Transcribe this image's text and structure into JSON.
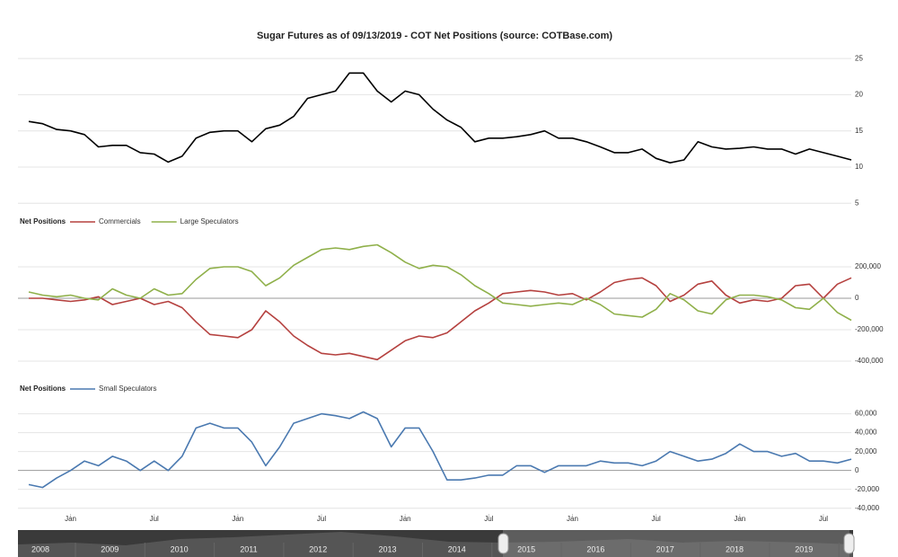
{
  "chart_data": [
    {
      "type": "line",
      "title": "Sugar Futures as of 09/13/2019 - COT Net Positions (source: COTBase.com)",
      "x": [
        "2014-10",
        "2014-11",
        "2014-12",
        "2015-01",
        "2015-02",
        "2015-03",
        "2015-04",
        "2015-05",
        "2015-06",
        "2015-07",
        "2015-08",
        "2015-09",
        "2015-10",
        "2015-11",
        "2015-12",
        "2016-01",
        "2016-02",
        "2016-03",
        "2016-04",
        "2016-05",
        "2016-06",
        "2016-07",
        "2016-08",
        "2016-09",
        "2016-10",
        "2016-11",
        "2016-12",
        "2017-01",
        "2017-02",
        "2017-03",
        "2017-04",
        "2017-05",
        "2017-06",
        "2017-07",
        "2017-08",
        "2017-09",
        "2017-10",
        "2017-11",
        "2017-12",
        "2018-01",
        "2018-02",
        "2018-03",
        "2018-04",
        "2018-05",
        "2018-06",
        "2018-07",
        "2018-08",
        "2018-09",
        "2018-10",
        "2018-11",
        "2018-12",
        "2019-01",
        "2019-02",
        "2019-03",
        "2019-04",
        "2019-05",
        "2019-06",
        "2019-07",
        "2019-08",
        "2019-09"
      ],
      "series": [
        {
          "color": "#000000",
          "values": [
            16.3,
            16.0,
            15.2,
            15.0,
            14.5,
            12.8,
            13.0,
            13.0,
            12.0,
            11.8,
            10.7,
            11.5,
            14.0,
            14.8,
            15.0,
            15.0,
            13.5,
            15.3,
            15.8,
            17.0,
            19.5,
            20.0,
            20.5,
            23.0,
            23.0,
            20.5,
            19.0,
            20.5,
            20.0,
            18.0,
            16.5,
            15.5,
            13.5,
            14.0,
            14.0,
            14.2,
            14.5,
            15.0,
            14.0,
            14.0,
            13.5,
            12.8,
            12.0,
            12.0,
            12.5,
            11.2,
            10.6,
            11.0,
            13.5,
            12.8,
            12.5,
            12.6,
            12.8,
            12.5,
            12.5,
            11.8,
            12.5,
            12.0,
            11.5,
            11.0
          ]
        }
      ],
      "ylim": [
        3.3,
        27.5
      ],
      "yticks": [
        5,
        10,
        15,
        20,
        25
      ]
    },
    {
      "type": "line",
      "legend_title": "Net Positions",
      "x": [
        "2014-10",
        "2014-11",
        "2014-12",
        "2015-01",
        "2015-02",
        "2015-03",
        "2015-04",
        "2015-05",
        "2015-06",
        "2015-07",
        "2015-08",
        "2015-09",
        "2015-10",
        "2015-11",
        "2015-12",
        "2016-01",
        "2016-02",
        "2016-03",
        "2016-04",
        "2016-05",
        "2016-06",
        "2016-07",
        "2016-08",
        "2016-09",
        "2016-10",
        "2016-11",
        "2016-12",
        "2017-01",
        "2017-02",
        "2017-03",
        "2017-04",
        "2017-05",
        "2017-06",
        "2017-07",
        "2017-08",
        "2017-09",
        "2017-10",
        "2017-11",
        "2017-12",
        "2018-01",
        "2018-02",
        "2018-03",
        "2018-04",
        "2018-05",
        "2018-06",
        "2018-07",
        "2018-08",
        "2018-09",
        "2018-10",
        "2018-11",
        "2018-12",
        "2019-01",
        "2019-02",
        "2019-03",
        "2019-04",
        "2019-05",
        "2019-06",
        "2019-07",
        "2019-08",
        "2019-09"
      ],
      "series": [
        {
          "name": "Commercials",
          "color": "#b5413f",
          "values": [
            0,
            0,
            -10000,
            -20000,
            -10000,
            10000,
            -40000,
            -20000,
            0,
            -40000,
            -20000,
            -60000,
            -150000,
            -230000,
            -240000,
            -250000,
            -200000,
            -80000,
            -150000,
            -240000,
            -300000,
            -350000,
            -360000,
            -350000,
            -370000,
            -390000,
            -330000,
            -270000,
            -240000,
            -250000,
            -220000,
            -150000,
            -80000,
            -30000,
            30000,
            40000,
            50000,
            40000,
            20000,
            30000,
            -10000,
            40000,
            100000,
            120000,
            130000,
            80000,
            -20000,
            20000,
            90000,
            110000,
            20000,
            -30000,
            -10000,
            -20000,
            0,
            80000,
            90000,
            0,
            90000,
            130000
          ]
        },
        {
          "name": "Large Speculators",
          "color": "#8fb04a",
          "values": [
            40000,
            20000,
            10000,
            20000,
            0,
            -10000,
            60000,
            20000,
            0,
            60000,
            20000,
            30000,
            120000,
            190000,
            200000,
            200000,
            170000,
            80000,
            130000,
            210000,
            260000,
            310000,
            320000,
            310000,
            330000,
            340000,
            290000,
            230000,
            190000,
            210000,
            200000,
            150000,
            80000,
            30000,
            -30000,
            -40000,
            -50000,
            -40000,
            -30000,
            -40000,
            0,
            -40000,
            -100000,
            -110000,
            -120000,
            -70000,
            30000,
            -10000,
            -80000,
            -100000,
            -10000,
            20000,
            20000,
            10000,
            -10000,
            -60000,
            -70000,
            0,
            -90000,
            -140000
          ]
        }
      ],
      "ylim": [
        -457000,
        400000
      ],
      "yticks": [
        {
          "value": -400000,
          "label": "-400,000"
        },
        {
          "value": -200000,
          "label": "-200,000"
        },
        0,
        {
          "value": 200000,
          "label": "200,000"
        }
      ]
    },
    {
      "type": "line",
      "legend_title": "Net Positions",
      "x": [
        "2014-10",
        "2014-11",
        "2014-12",
        "2015-01",
        "2015-02",
        "2015-03",
        "2015-04",
        "2015-05",
        "2015-06",
        "2015-07",
        "2015-08",
        "2015-09",
        "2015-10",
        "2015-11",
        "2015-12",
        "2016-01",
        "2016-02",
        "2016-03",
        "2016-04",
        "2016-05",
        "2016-06",
        "2016-07",
        "2016-08",
        "2016-09",
        "2016-10",
        "2016-11",
        "2016-12",
        "2017-01",
        "2017-02",
        "2017-03",
        "2017-04",
        "2017-05",
        "2017-06",
        "2017-07",
        "2017-08",
        "2017-09",
        "2017-10",
        "2017-11",
        "2017-12",
        "2018-01",
        "2018-02",
        "2018-03",
        "2018-04",
        "2018-05",
        "2018-06",
        "2018-07",
        "2018-08",
        "2018-09",
        "2018-10",
        "2018-11",
        "2018-12",
        "2019-01",
        "2019-02",
        "2019-03",
        "2019-04",
        "2019-05",
        "2019-06",
        "2019-07",
        "2019-08",
        "2019-09"
      ],
      "series": [
        {
          "name": "Small Speculators",
          "color": "#4a79b0",
          "values": [
            -15000,
            -18000,
            -8000,
            0,
            10000,
            5000,
            15000,
            10000,
            0,
            10000,
            0,
            15000,
            45000,
            50000,
            45000,
            45000,
            30000,
            5000,
            25000,
            50000,
            55000,
            60000,
            58000,
            55000,
            62000,
            55000,
            25000,
            45000,
            45000,
            20000,
            -10000,
            -10000,
            -8000,
            -5000,
            -5000,
            5000,
            5000,
            -2000,
            5000,
            5000,
            5000,
            10000,
            8000,
            8000,
            5000,
            10000,
            20000,
            15000,
            10000,
            12000,
            18000,
            28000,
            20000,
            20000,
            15000,
            18000,
            10000,
            10000,
            8000,
            12000
          ]
        }
      ],
      "ylim": [
        -46000,
        72000
      ],
      "yticks": [
        {
          "value": -40000,
          "label": "-40,000"
        },
        {
          "value": -20000,
          "label": "-20,000"
        },
        0,
        {
          "value": 20000,
          "label": "20,000"
        },
        {
          "value": 40000,
          "label": "40,000"
        },
        {
          "value": 60000,
          "label": "60,000"
        }
      ],
      "xticks": [
        {
          "value": "2015-01",
          "label": "Jan"
        },
        {
          "value": "2015-07",
          "label": "Jul"
        },
        {
          "value": "2016-01",
          "label": "Jan"
        },
        {
          "value": "2016-07",
          "label": "Jul"
        },
        {
          "value": "2017-01",
          "label": "Jan"
        },
        {
          "value": "2017-07",
          "label": "Jul"
        },
        {
          "value": "2018-01",
          "label": "Jan"
        },
        {
          "value": "2018-07",
          "label": "Jul"
        },
        {
          "value": "2019-01",
          "label": "Jan"
        },
        {
          "value": "2019-07",
          "label": "Jul"
        }
      ]
    }
  ],
  "navigator": {
    "labels": [
      "2008",
      "2009",
      "2010",
      "2011",
      "2012",
      "2013",
      "2014",
      "2015",
      "2016",
      "2017",
      "2018",
      "2019"
    ]
  }
}
